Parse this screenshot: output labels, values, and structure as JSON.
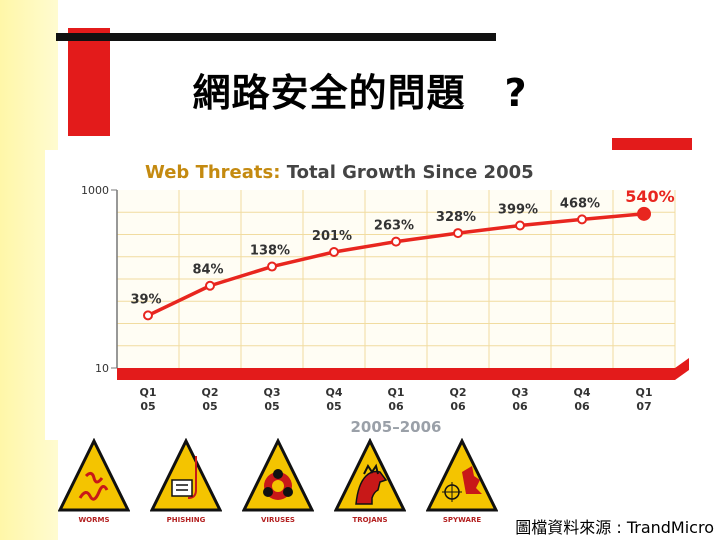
{
  "title": "網路安全的問題　?",
  "source": "圖檔資料來源 : TrandMicro",
  "colors": {
    "accent": "#e31b1b",
    "line": "#e8261f",
    "grid": "#f1dca0"
  },
  "chart_data": {
    "type": "line",
    "title_brand": "Web Threats:",
    "title_rest": " Total Growth Since 2005",
    "xlabel": "2005–2006",
    "yscale": "log",
    "ylim": [
      10,
      1000
    ],
    "yticks": [
      "1000",
      "10"
    ],
    "categories": [
      [
        "Q1",
        "05"
      ],
      [
        "Q2",
        "05"
      ],
      [
        "Q3",
        "05"
      ],
      [
        "Q4",
        "05"
      ],
      [
        "Q1",
        "06"
      ],
      [
        "Q2",
        "06"
      ],
      [
        "Q3",
        "06"
      ],
      [
        "Q4",
        "06"
      ],
      [
        "Q1",
        "07"
      ]
    ],
    "labels": [
      "39%",
      "84%",
      "138%",
      "201%",
      "263%",
      "328%",
      "399%",
      "468%",
      "540%"
    ],
    "values": [
      39,
      84,
      138,
      201,
      263,
      328,
      399,
      468,
      540
    ],
    "grid": true
  },
  "icons": [
    {
      "name": "worms",
      "label": "WORMS"
    },
    {
      "name": "phishing",
      "label": "PHISHING"
    },
    {
      "name": "viruses",
      "label": "VIRUSES"
    },
    {
      "name": "trojans",
      "label": "TROJANS"
    },
    {
      "name": "spyware",
      "label": "SPYWARE"
    }
  ]
}
